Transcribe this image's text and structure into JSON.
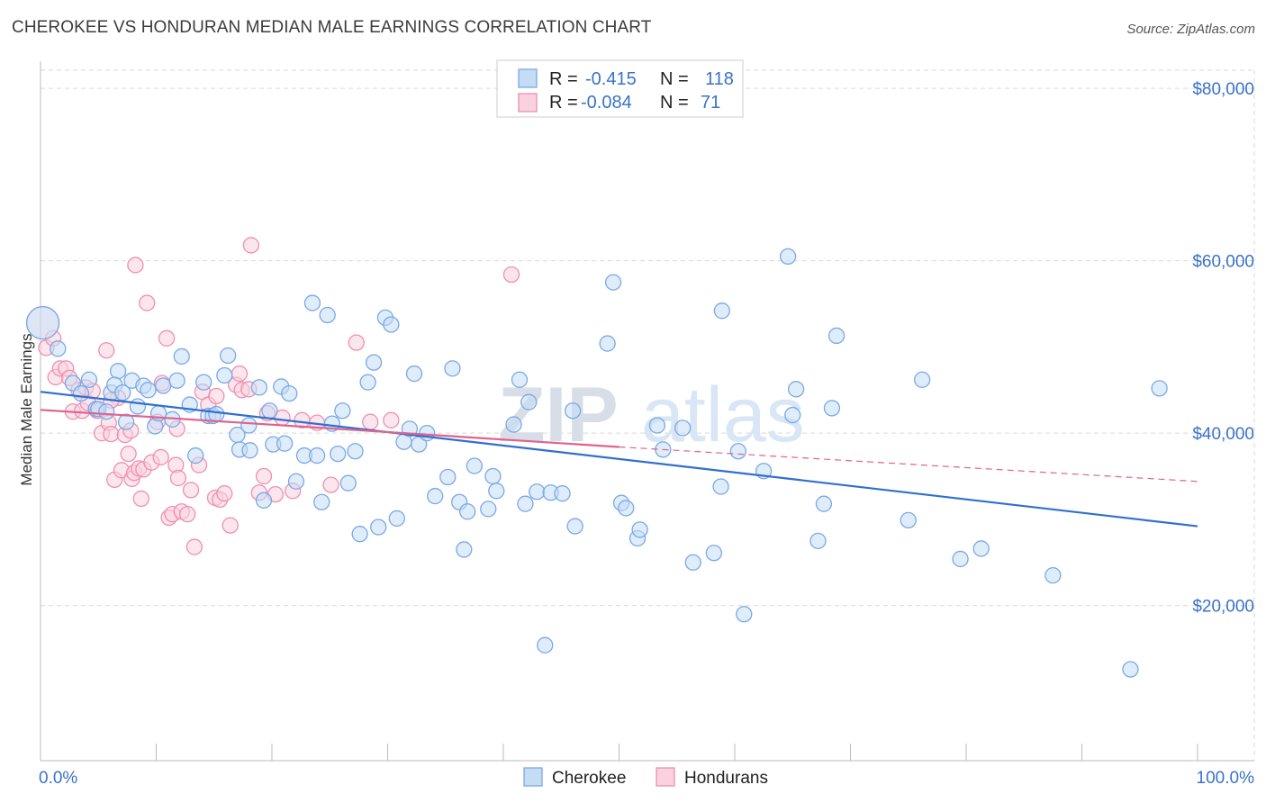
{
  "title": "CHEROKEE VS HONDURAN MEDIAN MALE EARNINGS CORRELATION CHART",
  "source": "Source: ZipAtlas.com",
  "watermark": {
    "zip": "ZIP",
    "atlas": "atlas"
  },
  "colors": {
    "cherokee": "#7aa9e6",
    "cherokee_fill": "#c5dcf5",
    "cherokee_line": "#2f6fd0",
    "hondurans": "#ef8fb1",
    "hondurans_fill": "#f9d1df",
    "hondurans_line": "#e0628e",
    "grid": "#d9d9d9",
    "axis_text": "#3a72c8"
  },
  "legend": {
    "rows": [
      {
        "r_label": "R = ",
        "r_value": "-0.415",
        "n_label": "N = ",
        "n_value": "118"
      },
      {
        "r_label": "R = ",
        "r_value": "-0.084",
        "n_label": "N = ",
        "n_value": "71"
      }
    ]
  },
  "bottom_legend": [
    "Cherokee",
    "Hondurans"
  ],
  "chart_data": {
    "type": "scatter",
    "title": "CHEROKEE VS HONDURAN MEDIAN MALE EARNINGS CORRELATION CHART",
    "xlabel": "",
    "ylabel": "Median Male Earnings",
    "xlim": [
      0,
      100
    ],
    "ylim": [
      2000,
      85000
    ],
    "x_tick_labels": [
      "0.0%",
      "100.0%"
    ],
    "y_ticks": [
      20000,
      40000,
      60000,
      80000
    ],
    "y_tick_labels": [
      "$20,000",
      "$40,000",
      "$60,000",
      "$80,000"
    ],
    "series": [
      {
        "name": "Cherokee",
        "r": -0.415,
        "n": 118,
        "trend": {
          "x": [
            0,
            100
          ],
          "y": [
            44800,
            29200
          ]
        },
        "points": [
          [
            0.2,
            52800
          ],
          [
            1.5,
            49800
          ],
          [
            2.8,
            45800
          ],
          [
            3.5,
            44600
          ],
          [
            4.2,
            46200
          ],
          [
            4.8,
            42800
          ],
          [
            5,
            42800
          ],
          [
            5.7,
            42500
          ],
          [
            6.1,
            44700
          ],
          [
            6.7,
            47200
          ],
          [
            6.4,
            45600
          ],
          [
            7.1,
            44700
          ],
          [
            7.4,
            41300
          ],
          [
            7.9,
            46100
          ],
          [
            8.4,
            43100
          ],
          [
            8.9,
            45500
          ],
          [
            9.3,
            45000
          ],
          [
            9.9,
            40800
          ],
          [
            10.2,
            42300
          ],
          [
            10.6,
            45500
          ],
          [
            11.4,
            41600
          ],
          [
            11.8,
            46100
          ],
          [
            12.2,
            48900
          ],
          [
            12.9,
            43300
          ],
          [
            13.4,
            37400
          ],
          [
            14.1,
            45900
          ],
          [
            14.5,
            42000
          ],
          [
            14.9,
            42000
          ],
          [
            15.2,
            42200
          ],
          [
            16.2,
            49000
          ],
          [
            15.9,
            46700
          ],
          [
            17,
            39800
          ],
          [
            17.2,
            38100
          ],
          [
            18.1,
            38000
          ],
          [
            18,
            40900
          ],
          [
            18.9,
            45300
          ],
          [
            19.3,
            32200
          ],
          [
            19.8,
            42600
          ],
          [
            20.1,
            38700
          ],
          [
            20.8,
            45400
          ],
          [
            21.1,
            38800
          ],
          [
            21.5,
            44600
          ],
          [
            22.1,
            34400
          ],
          [
            22.8,
            37400
          ],
          [
            23.5,
            55100
          ],
          [
            23.9,
            37400
          ],
          [
            24.3,
            32000
          ],
          [
            24.8,
            53700
          ],
          [
            25.2,
            41100
          ],
          [
            25.7,
            37600
          ],
          [
            26.1,
            42600
          ],
          [
            26.6,
            34200
          ],
          [
            27.2,
            37900
          ],
          [
            27.6,
            28300
          ],
          [
            28.3,
            45900
          ],
          [
            28.8,
            48200
          ],
          [
            29.2,
            29100
          ],
          [
            29.8,
            53400
          ],
          [
            30.3,
            52600
          ],
          [
            30.8,
            30100
          ],
          [
            31.4,
            39000
          ],
          [
            31.9,
            40500
          ],
          [
            32.3,
            46900
          ],
          [
            32.7,
            38700
          ],
          [
            33.4,
            40000
          ],
          [
            34.1,
            32700
          ],
          [
            35.2,
            34900
          ],
          [
            35.6,
            47500
          ],
          [
            36.2,
            32000
          ],
          [
            36.6,
            26500
          ],
          [
            36.9,
            30900
          ],
          [
            37.5,
            36200
          ],
          [
            38.7,
            31200
          ],
          [
            39.1,
            35000
          ],
          [
            39.4,
            33300
          ],
          [
            40.9,
            41000
          ],
          [
            41.4,
            46200
          ],
          [
            41.9,
            31800
          ],
          [
            42.2,
            43600
          ],
          [
            42.9,
            33200
          ],
          [
            43.6,
            15400
          ],
          [
            44.1,
            33100
          ],
          [
            45.1,
            33000
          ],
          [
            46,
            42600
          ],
          [
            46.2,
            29200
          ],
          [
            49,
            50400
          ],
          [
            49.5,
            57500
          ],
          [
            50.2,
            31900
          ],
          [
            50.6,
            31300
          ],
          [
            51.6,
            27800
          ],
          [
            51.8,
            28800
          ],
          [
            53.3,
            40900
          ],
          [
            53.8,
            38100
          ],
          [
            55.5,
            40600
          ],
          [
            56.4,
            25000
          ],
          [
            58.2,
            26100
          ],
          [
            58.8,
            33800
          ],
          [
            58.9,
            54200
          ],
          [
            60.3,
            37900
          ],
          [
            60.8,
            19000
          ],
          [
            62.5,
            35600
          ],
          [
            64.6,
            60500
          ],
          [
            65,
            42100
          ],
          [
            65.3,
            45100
          ],
          [
            67.2,
            27500
          ],
          [
            67.7,
            31800
          ],
          [
            68.4,
            42900
          ],
          [
            68.8,
            51300
          ],
          [
            75,
            29900
          ],
          [
            76.2,
            46200
          ],
          [
            79.5,
            25400
          ],
          [
            81.3,
            26600
          ],
          [
            87.5,
            23500
          ],
          [
            94.2,
            12600
          ],
          [
            96.7,
            45200
          ]
        ],
        "sizes": [
          40
        ]
      },
      {
        "name": "Hondurans",
        "r": -0.084,
        "n": 71,
        "trend": {
          "x": [
            0,
            50
          ],
          "y": [
            42700,
            38400
          ]
        },
        "trend_dashed": {
          "x": [
            50,
            100
          ],
          "y": [
            38400,
            34400
          ]
        },
        "points": [
          [
            0.5,
            49900
          ],
          [
            1.1,
            51000
          ],
          [
            1.3,
            46500
          ],
          [
            1.7,
            47500
          ],
          [
            2.2,
            47500
          ],
          [
            2.5,
            46400
          ],
          [
            2.8,
            42500
          ],
          [
            3.3,
            45000
          ],
          [
            3.6,
            42600
          ],
          [
            3.9,
            45300
          ],
          [
            4.1,
            43500
          ],
          [
            4.5,
            44900
          ],
          [
            4.9,
            42600
          ],
          [
            5.3,
            40000
          ],
          [
            5.7,
            49600
          ],
          [
            5.9,
            41200
          ],
          [
            6.1,
            39900
          ],
          [
            6.4,
            34600
          ],
          [
            6.7,
            44100
          ],
          [
            7,
            35700
          ],
          [
            7.3,
            39800
          ],
          [
            7.6,
            37600
          ],
          [
            7.8,
            40300
          ],
          [
            7.9,
            34700
          ],
          [
            8.1,
            35400
          ],
          [
            8.5,
            35900
          ],
          [
            8.2,
            59500
          ],
          [
            8.7,
            32400
          ],
          [
            8.9,
            35800
          ],
          [
            9.2,
            55100
          ],
          [
            9.6,
            36600
          ],
          [
            10.1,
            41300
          ],
          [
            10.4,
            37200
          ],
          [
            10.5,
            45800
          ],
          [
            10.9,
            51000
          ],
          [
            11.1,
            30200
          ],
          [
            11.4,
            30600
          ],
          [
            11.7,
            36300
          ],
          [
            11.8,
            40500
          ],
          [
            12.2,
            30900
          ],
          [
            12.7,
            30600
          ],
          [
            13,
            33400
          ],
          [
            13.3,
            26800
          ],
          [
            13.7,
            36300
          ],
          [
            14,
            44800
          ],
          [
            14.5,
            43300
          ],
          [
            15.1,
            32500
          ],
          [
            15.5,
            32300
          ],
          [
            15.9,
            33000
          ],
          [
            16.4,
            29300
          ],
          [
            16.9,
            45600
          ],
          [
            17.2,
            46900
          ],
          [
            17.4,
            45000
          ],
          [
            18,
            45100
          ],
          [
            18.2,
            61800
          ],
          [
            18.9,
            33100
          ],
          [
            19.3,
            35000
          ],
          [
            19.6,
            42300
          ],
          [
            20.3,
            32900
          ],
          [
            20.9,
            41800
          ],
          [
            21.8,
            33300
          ],
          [
            22.6,
            41500
          ],
          [
            23.9,
            41200
          ],
          [
            25.1,
            34000
          ],
          [
            27.3,
            50500
          ],
          [
            28.5,
            41300
          ],
          [
            30.3,
            41500
          ],
          [
            40.7,
            58400
          ],
          [
            11.9,
            34800
          ],
          [
            15.2,
            44300
          ],
          [
            6.1,
            43800
          ]
        ],
        "sizes": [
          40
        ]
      }
    ],
    "legend_position": "top-center"
  }
}
